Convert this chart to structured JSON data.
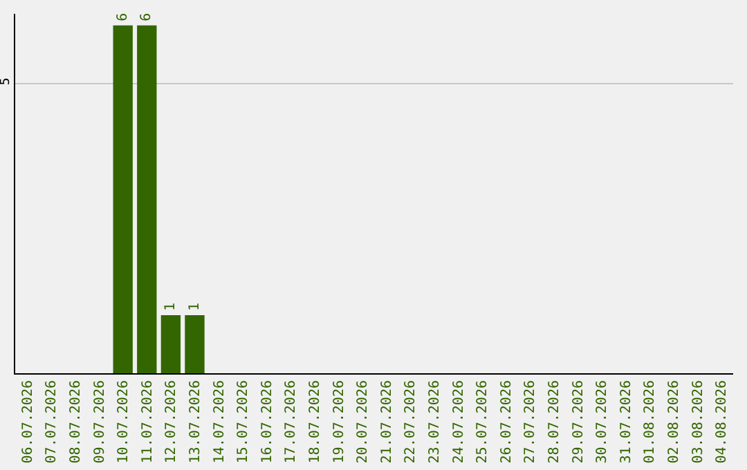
{
  "chart_data": {
    "type": "bar",
    "categories": [
      "06.07.2026",
      "07.07.2026",
      "08.07.2026",
      "09.07.2026",
      "10.07.2026",
      "11.07.2026",
      "12.07.2026",
      "13.07.2026",
      "14.07.2026",
      "15.07.2026",
      "16.07.2026",
      "17.07.2026",
      "18.07.2026",
      "19.07.2026",
      "20.07.2026",
      "21.07.2026",
      "22.07.2026",
      "23.07.2026",
      "24.07.2026",
      "25.07.2026",
      "26.07.2026",
      "27.07.2026",
      "28.07.2026",
      "29.07.2026",
      "30.07.2026",
      "31.07.2026",
      "01.08.2026",
      "02.08.2026",
      "03.08.2026",
      "04.08.2026"
    ],
    "values": [
      0,
      0,
      0,
      0,
      6,
      6,
      1,
      1,
      0,
      0,
      0,
      0,
      0,
      0,
      0,
      0,
      0,
      0,
      0,
      0,
      0,
      0,
      0,
      0,
      0,
      0,
      0,
      0,
      0,
      0
    ],
    "value_labels": [
      null,
      null,
      null,
      null,
      "6",
      "6",
      "1",
      "1",
      null,
      null,
      null,
      null,
      null,
      null,
      null,
      null,
      null,
      null,
      null,
      null,
      null,
      null,
      null,
      null,
      null,
      null,
      null,
      null,
      null,
      null
    ],
    "color": "#336600",
    "ylim": [
      0,
      6.2
    ],
    "yticks": [
      5
    ],
    "grid": "y",
    "legend": false
  }
}
